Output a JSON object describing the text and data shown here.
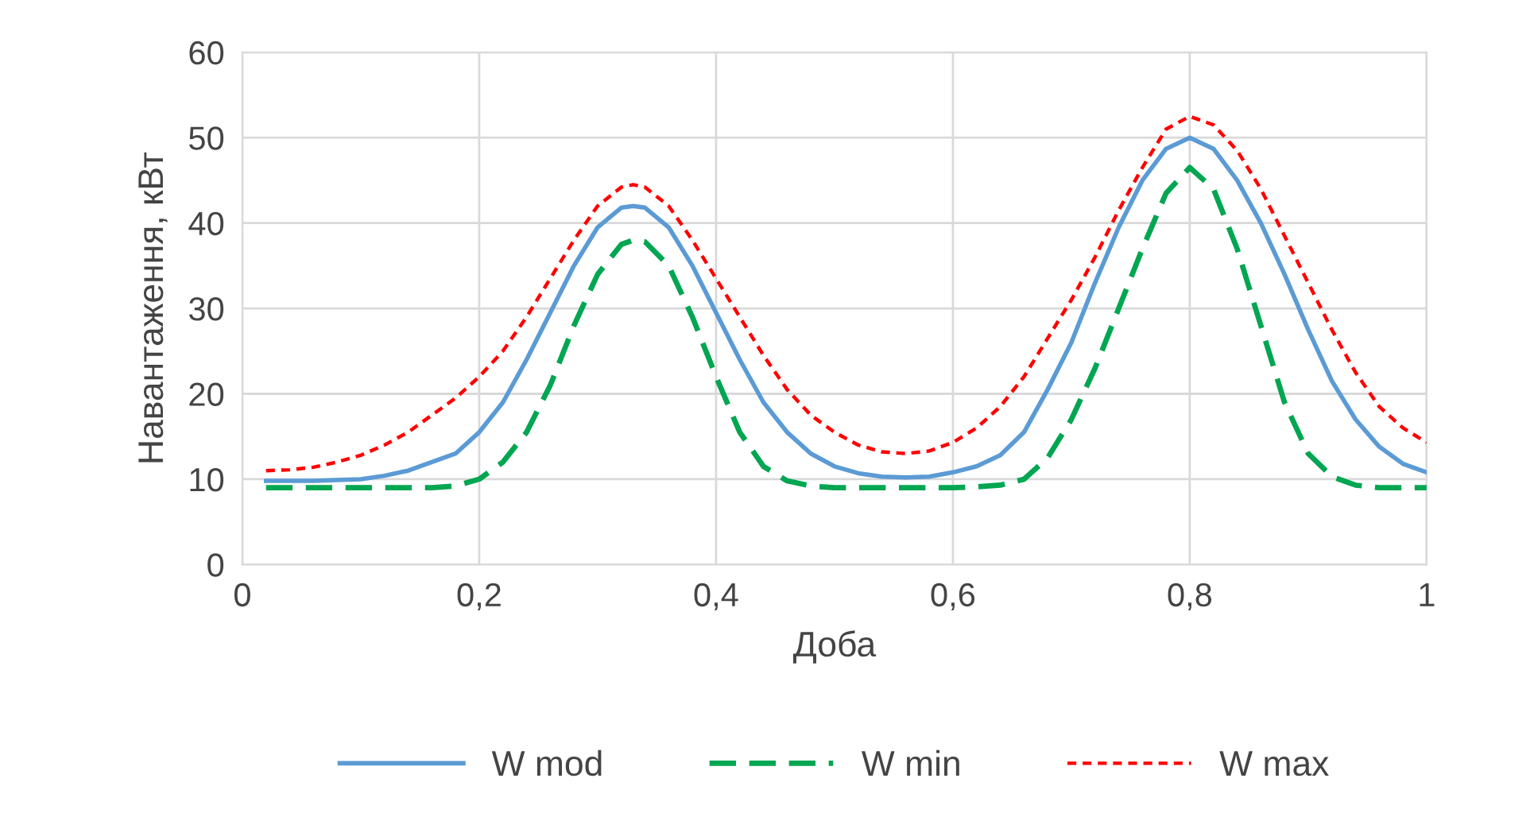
{
  "chart_data": {
    "type": "line",
    "xlabel": "Доба",
    "ylabel": "Навантаження, кВт",
    "x": [
      0.02,
      0.04,
      0.06,
      0.08,
      0.1,
      0.12,
      0.14,
      0.16,
      0.18,
      0.2,
      0.22,
      0.24,
      0.26,
      0.28,
      0.3,
      0.32,
      0.33,
      0.34,
      0.36,
      0.38,
      0.4,
      0.42,
      0.44,
      0.46,
      0.48,
      0.5,
      0.52,
      0.54,
      0.56,
      0.58,
      0.6,
      0.62,
      0.64,
      0.66,
      0.68,
      0.7,
      0.72,
      0.74,
      0.76,
      0.78,
      0.8,
      0.82,
      0.84,
      0.86,
      0.88,
      0.9,
      0.92,
      0.94,
      0.96,
      0.98,
      1.0
    ],
    "series": [
      {
        "name": "W mod",
        "color": "#5b9bd5",
        "line_style": "solid",
        "values": [
          9.8,
          9.8,
          9.8,
          9.9,
          10,
          10.4,
          11,
          12,
          13,
          15.5,
          19,
          24,
          29.5,
          35,
          39.5,
          41.8,
          42,
          41.8,
          39.5,
          35,
          29.5,
          24,
          19,
          15.5,
          13,
          11.5,
          10.7,
          10.3,
          10.2,
          10.3,
          10.8,
          11.5,
          12.8,
          15.5,
          20.5,
          26,
          33,
          39.5,
          45,
          48.7,
          50,
          48.7,
          45,
          40,
          34,
          27.5,
          21.5,
          17,
          13.8,
          11.8,
          10.8
        ]
      },
      {
        "name": "W min",
        "color": "#00a651",
        "line_style": "dashed",
        "values": [
          9,
          9,
          9,
          9,
          9,
          9,
          9,
          9,
          9.2,
          10,
          12,
          15.5,
          21,
          28,
          34,
          37.5,
          38,
          37.8,
          35,
          29,
          22,
          15.5,
          11.5,
          9.8,
          9.2,
          9,
          9,
          9,
          9,
          9,
          9,
          9.1,
          9.3,
          10,
          12.5,
          17,
          23,
          30,
          37,
          43.5,
          46.5,
          44,
          37,
          28,
          19,
          13,
          10.3,
          9.3,
          9,
          9,
          9
        ]
      },
      {
        "name": "W max",
        "color": "#ff0000",
        "line_style": "dotted",
        "values": [
          11,
          11.1,
          11.4,
          12,
          12.8,
          14,
          15.5,
          17.5,
          19.5,
          22,
          25,
          29,
          33.5,
          38,
          42,
          44.2,
          44.5,
          44.2,
          42,
          38,
          33.5,
          29,
          24.5,
          20.5,
          17.5,
          15.5,
          14,
          13.2,
          13,
          13.3,
          14.3,
          16,
          18.5,
          22,
          26.5,
          31,
          36,
          41.5,
          46.5,
          51,
          52.5,
          51.5,
          48.5,
          44,
          38.5,
          33,
          27.5,
          22.5,
          18.5,
          16,
          14.3
        ]
      }
    ],
    "xlim": [
      0,
      1
    ],
    "ylim": [
      0,
      60
    ],
    "xticks": [
      0,
      {
        "value": 0.2,
        "label": "0,2"
      },
      {
        "value": 0.4,
        "label": "0,4"
      },
      {
        "value": 0.6,
        "label": "0,6"
      },
      {
        "value": 0.8,
        "label": "0,8"
      },
      1
    ],
    "yticks": [
      0,
      10,
      20,
      30,
      40,
      50,
      60
    ],
    "grid": true,
    "legend": "bottom",
    "marker": "none"
  }
}
